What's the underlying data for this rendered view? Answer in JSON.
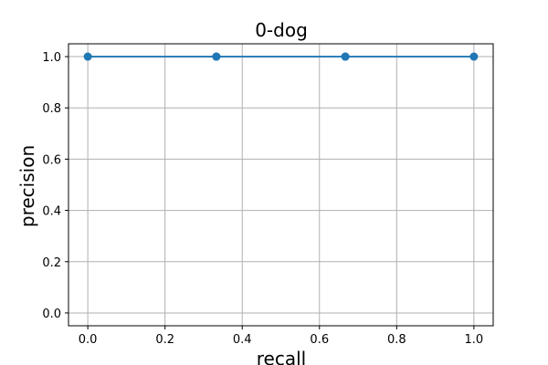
{
  "chart_data": {
    "type": "line",
    "title": "0-dog",
    "xlabel": "recall",
    "ylabel": "precision",
    "xlim": [
      -0.05,
      1.05
    ],
    "ylim": [
      -0.05,
      1.05
    ],
    "grid": true,
    "x_ticks": [
      0.0,
      0.2,
      0.4,
      0.6,
      0.8,
      1.0
    ],
    "y_ticks": [
      0.0,
      0.2,
      0.4,
      0.6,
      0.8,
      1.0
    ],
    "x_tick_labels": [
      "0.0",
      "0.2",
      "0.4",
      "0.6",
      "0.8",
      "1.0"
    ],
    "y_tick_labels": [
      "0.0",
      "0.2",
      "0.4",
      "0.6",
      "0.8",
      "1.0"
    ],
    "series": [
      {
        "color": "#1f77b4",
        "points": [
          {
            "x": 0.0,
            "y": 1.0
          },
          {
            "x": 0.333,
            "y": 1.0
          },
          {
            "x": 0.333,
            "y": 1.0
          },
          {
            "x": 0.667,
            "y": 1.0
          },
          {
            "x": 0.667,
            "y": 1.0
          },
          {
            "x": 1.0,
            "y": 1.0
          }
        ]
      }
    ]
  }
}
